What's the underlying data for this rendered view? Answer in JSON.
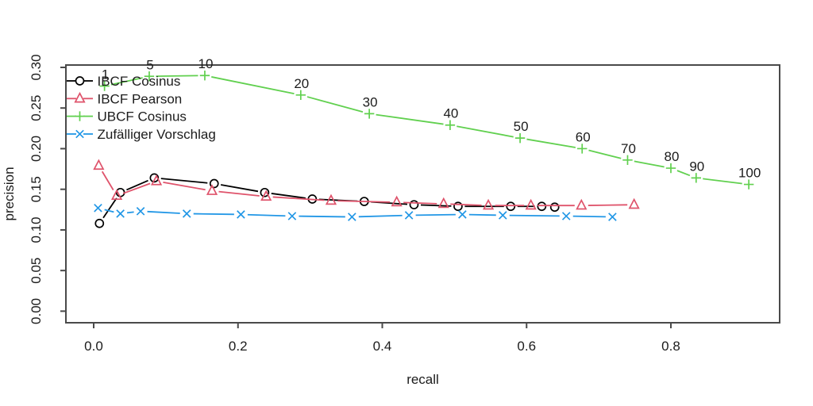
{
  "figure": {
    "background": "#ffffff"
  },
  "colors": {
    "axis": "#4a4a4a",
    "text": "#1c1c1c",
    "series_black": "#000000",
    "series_red": "#DF536B",
    "series_green": "#61D04F",
    "series_blue": "#2297E6"
  },
  "chart_data": {
    "type": "line",
    "title": "",
    "xlabel": "recall",
    "ylabel": "precision",
    "xlim": [
      -0.04,
      0.99
    ],
    "ylim": [
      -0.014,
      0.303
    ],
    "x_ticks": [
      0.0,
      0.2,
      0.4,
      0.6,
      0.8
    ],
    "x_tick_labels": [
      "0.0",
      "0.2",
      "0.4",
      "0.6",
      "0.8"
    ],
    "y_ticks": [
      0.0,
      0.05,
      0.1,
      0.15,
      0.2,
      0.25,
      0.3
    ],
    "y_tick_labels": [
      "0.00",
      "0.05",
      "0.10",
      "0.15",
      "0.20",
      "0.25",
      "0.30"
    ],
    "grid": false,
    "legend_position": "top-left",
    "line_style": "segments-with-point-gaps",
    "series": [
      {
        "name": "IBCF Cosinus",
        "color": "#000000",
        "marker": "circle",
        "x": [
          0.008,
          0.037,
          0.084,
          0.167,
          0.237,
          0.303,
          0.375,
          0.444,
          0.505,
          0.578,
          0.621,
          0.639
        ],
        "y": [
          0.108,
          0.146,
          0.164,
          0.157,
          0.146,
          0.138,
          0.135,
          0.131,
          0.129,
          0.129,
          0.129,
          0.128
        ]
      },
      {
        "name": "IBCF Pearson",
        "color": "#DF536B",
        "marker": "triangle",
        "x": [
          0.007,
          0.032,
          0.087,
          0.164,
          0.239,
          0.329,
          0.42,
          0.485,
          0.547,
          0.606,
          0.676,
          0.749
        ],
        "y": [
          0.179,
          0.142,
          0.16,
          0.148,
          0.141,
          0.136,
          0.134,
          0.132,
          0.13,
          0.13,
          0.13,
          0.131
        ]
      },
      {
        "name": "UBCF Cosinus",
        "color": "#61D04F",
        "marker": "plus",
        "x": [
          0.015,
          0.077,
          0.154,
          0.287,
          0.382,
          0.494,
          0.591,
          0.677,
          0.74,
          0.8,
          0.835,
          0.908
        ],
        "y": [
          0.277,
          0.289,
          0.29,
          0.266,
          0.243,
          0.229,
          0.213,
          0.2,
          0.186,
          0.176,
          0.164,
          0.156
        ],
        "point_labels": [
          "1",
          "5",
          "10",
          "20",
          "30",
          "40",
          "50",
          "60",
          "70",
          "80",
          "90",
          "100"
        ]
      },
      {
        "name": "Zufälliger Vorschlag",
        "color": "#2297E6",
        "marker": "x",
        "x": [
          0.006,
          0.037,
          0.065,
          0.129,
          0.204,
          0.275,
          0.358,
          0.437,
          0.511,
          0.567,
          0.655,
          0.719
        ],
        "y": [
          0.127,
          0.12,
          0.123,
          0.12,
          0.119,
          0.117,
          0.116,
          0.118,
          0.119,
          0.118,
          0.117,
          0.116
        ]
      }
    ]
  }
}
